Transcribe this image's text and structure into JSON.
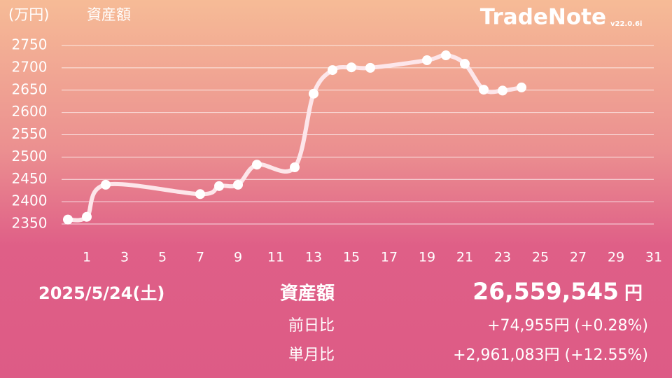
{
  "app": {
    "name": "TradeNote",
    "version": "v22.0.6i"
  },
  "chart_data": {
    "type": "line",
    "y_unit": "(万円)",
    "title": "資産額",
    "x": [
      0,
      1,
      2,
      7,
      8,
      9,
      10,
      12,
      13,
      14,
      15,
      16,
      19,
      20,
      21,
      22,
      23,
      24
    ],
    "series": [
      {
        "color": "#fde6ea",
        "values": [
          2360,
          2366,
          2438,
          2417,
          2435,
          2438,
          2483,
          2477,
          2642,
          2695,
          2701,
          2700,
          2717,
          2728,
          2709,
          2651,
          2649,
          2656
        ]
      }
    ],
    "xlim": [
      0,
      31
    ],
    "xticks": [
      1,
      3,
      5,
      7,
      9,
      11,
      13,
      15,
      17,
      19,
      21,
      23,
      25,
      27,
      29,
      31
    ],
    "ylim": [
      2350,
      2750
    ],
    "yticks": [
      2350,
      2400,
      2450,
      2500,
      2550,
      2600,
      2650,
      2700,
      2750
    ],
    "grid": true
  },
  "summary": {
    "date": "2025/5/24(土)",
    "asset_label": "資産額",
    "asset_value": "26,559,545",
    "asset_unit": "円",
    "day_label": "前日比",
    "day_change": "+74,955円 (+0.28%)",
    "month_label": "単月比",
    "month_change": "+2,961,083円 (+12.55%)"
  }
}
